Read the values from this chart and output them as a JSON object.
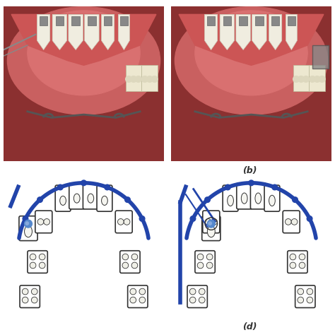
{
  "figure_width": 4.74,
  "figure_height": 4.74,
  "dpi": 100,
  "background_color": "#ffffff",
  "label_b": "(b)",
  "label_d": "(d)",
  "label_fontsize": 9,
  "label_fontstyle": "italic",
  "label_fontweight": "bold",
  "arch_color": "#2244AA",
  "tooth_color": "#ffffff",
  "outline_color": "#333333",
  "gum_dark": "#8B3030",
  "gum_mid": "#C96060",
  "gum_light": "#D97070",
  "gum_ridge": "#CC5555",
  "tooth_fill": "#F0EDE0",
  "bracket_color": "#888888"
}
